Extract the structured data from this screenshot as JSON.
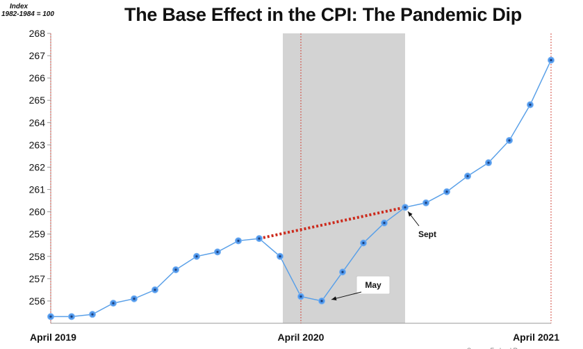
{
  "chart_data": {
    "type": "line",
    "title": "The Base Effect in the CPI: The Pandemic Dip",
    "ylabel": [
      "Index",
      "1982-1984 = 100"
    ],
    "ylim": [
      255,
      268
    ],
    "yticks": [
      256,
      257,
      258,
      259,
      260,
      261,
      262,
      263,
      264,
      265,
      266,
      267,
      268
    ],
    "x_labels": [
      {
        "index": 0,
        "label": "April 2019"
      },
      {
        "index": 12,
        "label": "April 2020"
      },
      {
        "index": 24,
        "label": "April 2021"
      }
    ],
    "series": [
      {
        "x": [
          "2019-04",
          "2019-05",
          "2019-06",
          "2019-07",
          "2019-08",
          "2019-09",
          "2019-10",
          "2019-11",
          "2019-12",
          "2020-01",
          "2020-02",
          "2020-03",
          "2020-04",
          "2020-05",
          "2020-06",
          "2020-07",
          "2020-08",
          "2020-09",
          "2020-10",
          "2020-11",
          "2020-12",
          "2021-01",
          "2021-02",
          "2021-03",
          "2021-04"
        ],
        "values": [
          255.3,
          255.3,
          255.4,
          255.9,
          256.1,
          256.5,
          257.4,
          258.0,
          258.2,
          258.7,
          258.8,
          258.0,
          256.2,
          256.0,
          257.3,
          258.6,
          259.5,
          260.2,
          260.4,
          260.9,
          261.6,
          262.2,
          263.2,
          264.8,
          266.8
        ],
        "color": "#5aa0e8"
      }
    ],
    "shaded_region": {
      "from_index": 11,
      "to_index": 17,
      "color": "#d3d3d3"
    },
    "trend_line": {
      "from_index": 10,
      "to_index": 17,
      "color": "#cc2a1c",
      "style": "dotted"
    },
    "annotations": [
      {
        "text": "May",
        "point_index": 13
      },
      {
        "text": "Sept",
        "point_index": 17
      }
    ],
    "grid": false,
    "source_text": "Source: Federal Reserve"
  }
}
